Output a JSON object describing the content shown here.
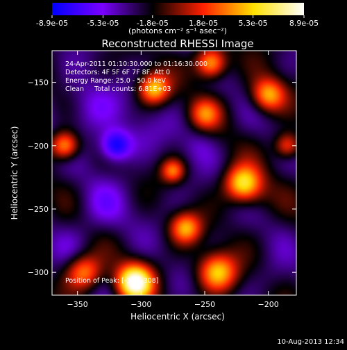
{
  "chart_data": {
    "type": "heatmap",
    "title": "Reconstructed RHESSI Image",
    "xlabel": "Heliocentric X (arcsec)",
    "ylabel": "Heliocentric Y (arcsec)",
    "xlim": [
      -370,
      -178
    ],
    "ylim": [
      -318,
      -125
    ],
    "xticks": [
      -350,
      -300,
      -250,
      -200
    ],
    "yticks": [
      -150,
      -200,
      -250,
      -300
    ],
    "colorbar": {
      "min": -8.9e-05,
      "max": 8.9e-05,
      "tick_values": [
        -8.9e-05,
        -5.3e-05,
        -1.8e-05,
        1.8e-05,
        5.3e-05,
        8.9e-05
      ],
      "tick_labels": [
        "-8.9e-05",
        "-5.3e-05",
        "-1.8e-05",
        "1.8e-05",
        "5.3e-05",
        "8.9e-05"
      ],
      "unit_label": "(photons cm⁻² s⁻¹ asec⁻²)"
    },
    "annotations": [
      "24-Apr-2011 01:10:30.000 to 01:16:30.000",
      "Detectors: 4F 5F 6F 7F 8F, Att 0",
      "Energy Range: 25.0 - 50.0 keV",
      "Clean     Total counts: 6.81E+03"
    ],
    "peak_text": "Position of Peak: [-302,-308]",
    "peak": [
      -302,
      -308
    ],
    "colormap": [
      "#0000ff",
      "#7a00ff",
      "#000000",
      "#ff2000",
      "#ffe000",
      "#ffffff"
    ],
    "features": [
      {
        "x": -320,
        "y": -200,
        "value": -8.9e-05,
        "radius": 12
      },
      {
        "x": -340,
        "y": -170,
        "value": -5.3e-05,
        "radius": 22
      },
      {
        "x": -300,
        "y": -190,
        "value": -4e-05,
        "radius": 20
      },
      {
        "x": -330,
        "y": -250,
        "value": -4.5e-05,
        "radius": 22
      },
      {
        "x": -355,
        "y": -280,
        "value": -3.5e-05,
        "radius": 18
      },
      {
        "x": -275,
        "y": -240,
        "value": -3e-05,
        "radius": 18
      },
      {
        "x": -255,
        "y": -200,
        "value": -4e-05,
        "radius": 14
      },
      {
        "x": -230,
        "y": -265,
        "value": -2.5e-05,
        "radius": 14
      },
      {
        "x": -195,
        "y": -305,
        "value": -3.5e-05,
        "radius": 16
      },
      {
        "x": -210,
        "y": -240,
        "value": -1.5e-05,
        "radius": 14
      },
      {
        "x": -290,
        "y": -155,
        "value": 5e-05,
        "radius": 12
      },
      {
        "x": -305,
        "y": -308,
        "value": 8.9e-05,
        "radius": 14
      },
      {
        "x": -240,
        "y": -300,
        "value": 5e-05,
        "radius": 15
      },
      {
        "x": -220,
        "y": -230,
        "value": 6e-05,
        "radius": 14
      },
      {
        "x": -200,
        "y": -160,
        "value": 4.5e-05,
        "radius": 13
      },
      {
        "x": -360,
        "y": -200,
        "value": 5e-05,
        "radius": 11
      },
      {
        "x": -265,
        "y": -265,
        "value": 4e-05,
        "radius": 12
      },
      {
        "x": -345,
        "y": -300,
        "value": 4e-05,
        "radius": 14
      },
      {
        "x": -245,
        "y": -135,
        "value": 5.5e-05,
        "radius": 12
      },
      {
        "x": -250,
        "y": -175,
        "value": 2.5e-05,
        "radius": 12
      },
      {
        "x": -185,
        "y": -200,
        "value": 3e-05,
        "radius": 10
      },
      {
        "x": -275,
        "y": -220,
        "value": 3e-05,
        "radius": 9
      }
    ]
  },
  "footer": {
    "date": "10-Aug-2013 12:34"
  }
}
